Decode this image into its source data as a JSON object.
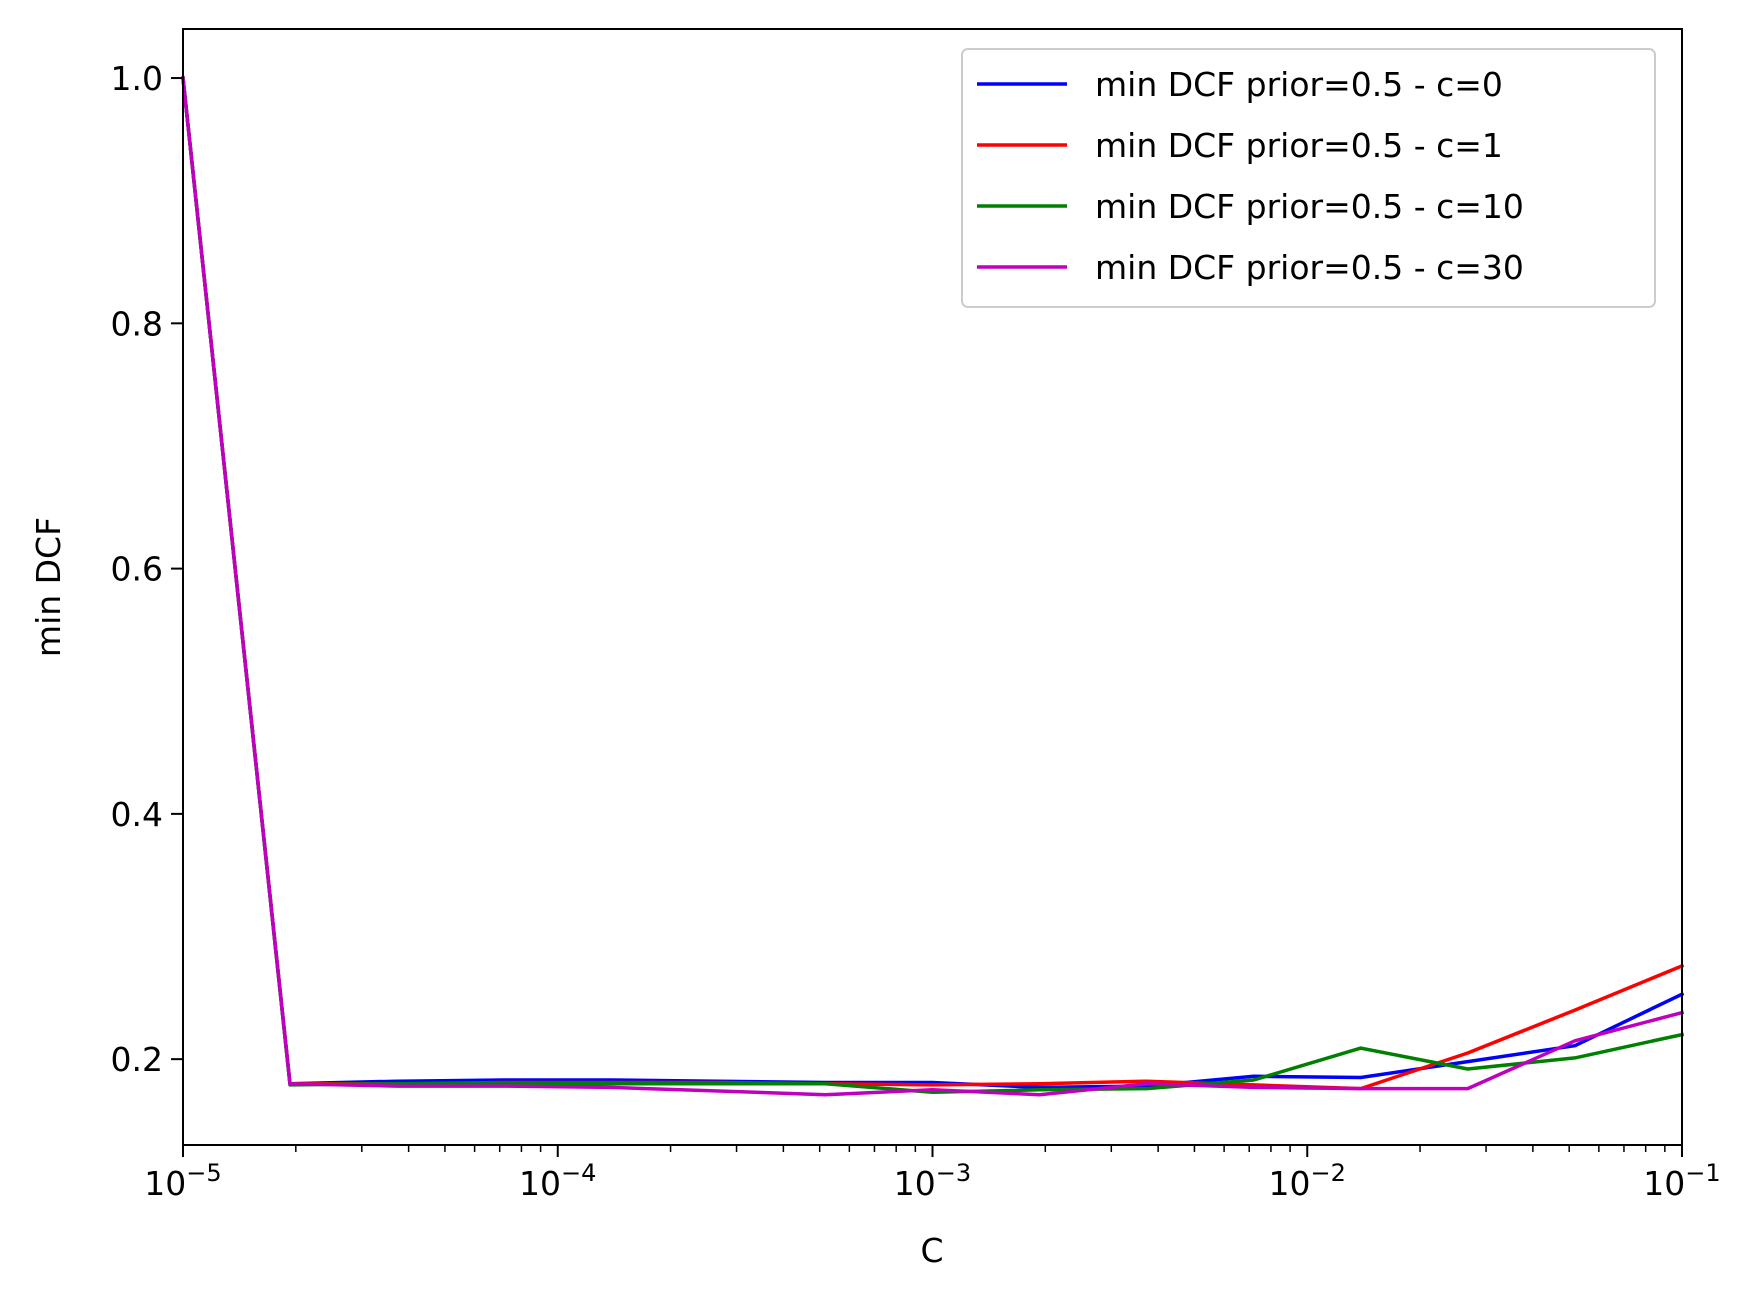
{
  "chart_data": {
    "type": "line",
    "xscale": "log",
    "xlabel": "C",
    "ylabel": "min DCF",
    "xlim": [
      1e-05,
      0.1
    ],
    "ylim": [
      0.13,
      1.04
    ],
    "x_ticks": [
      {
        "value": 1e-05,
        "base": "10",
        "exp": "−5"
      },
      {
        "value": 0.0001,
        "base": "10",
        "exp": "−4"
      },
      {
        "value": 0.001,
        "base": "10",
        "exp": "−3"
      },
      {
        "value": 0.01,
        "base": "10",
        "exp": "−2"
      },
      {
        "value": 0.1,
        "base": "10",
        "exp": "−1"
      }
    ],
    "y_ticks": [
      {
        "value": 0.2,
        "label": "0.2"
      },
      {
        "value": 0.4,
        "label": "0.4"
      },
      {
        "value": 0.6,
        "label": "0.6"
      },
      {
        "value": 0.8,
        "label": "0.8"
      },
      {
        "value": 1.0,
        "label": "1.0"
      }
    ],
    "x": [
      1e-05,
      1.93e-05,
      3.73e-05,
      7.2e-05,
      0.000139,
      0.000268,
      0.000518,
      0.001,
      0.00193,
      0.00373,
      0.0072,
      0.0139,
      0.0268,
      0.0518,
      0.1
    ],
    "series": [
      {
        "name": "min DCF prior=0.5 - c=0",
        "color": "#0000ff",
        "values": [
          1.0,
          0.18,
          0.182,
          0.183,
          0.183,
          0.182,
          0.181,
          0.181,
          0.177,
          0.178,
          0.186,
          0.185,
          0.198,
          0.211,
          0.253
        ]
      },
      {
        "name": "min DCF prior=0.5 - c=1",
        "color": "#ff0000",
        "values": [
          1.0,
          0.18,
          0.18,
          0.181,
          0.181,
          0.181,
          0.18,
          0.179,
          0.18,
          0.182,
          0.179,
          0.176,
          0.205,
          0.24,
          0.276
        ]
      },
      {
        "name": "min DCF prior=0.5 - c=10",
        "color": "#008000",
        "values": [
          1.0,
          0.179,
          0.18,
          0.18,
          0.18,
          0.18,
          0.18,
          0.173,
          0.175,
          0.176,
          0.183,
          0.209,
          0.192,
          0.201,
          0.22
        ]
      },
      {
        "name": "min DCF prior=0.5 - c=30",
        "color": "#bf00bf",
        "values": [
          1.0,
          0.18,
          0.178,
          0.178,
          0.177,
          0.174,
          0.171,
          0.175,
          0.171,
          0.18,
          0.177,
          0.176,
          0.176,
          0.215,
          0.238
        ]
      }
    ],
    "legend_position": "top-right",
    "grid": false
  }
}
